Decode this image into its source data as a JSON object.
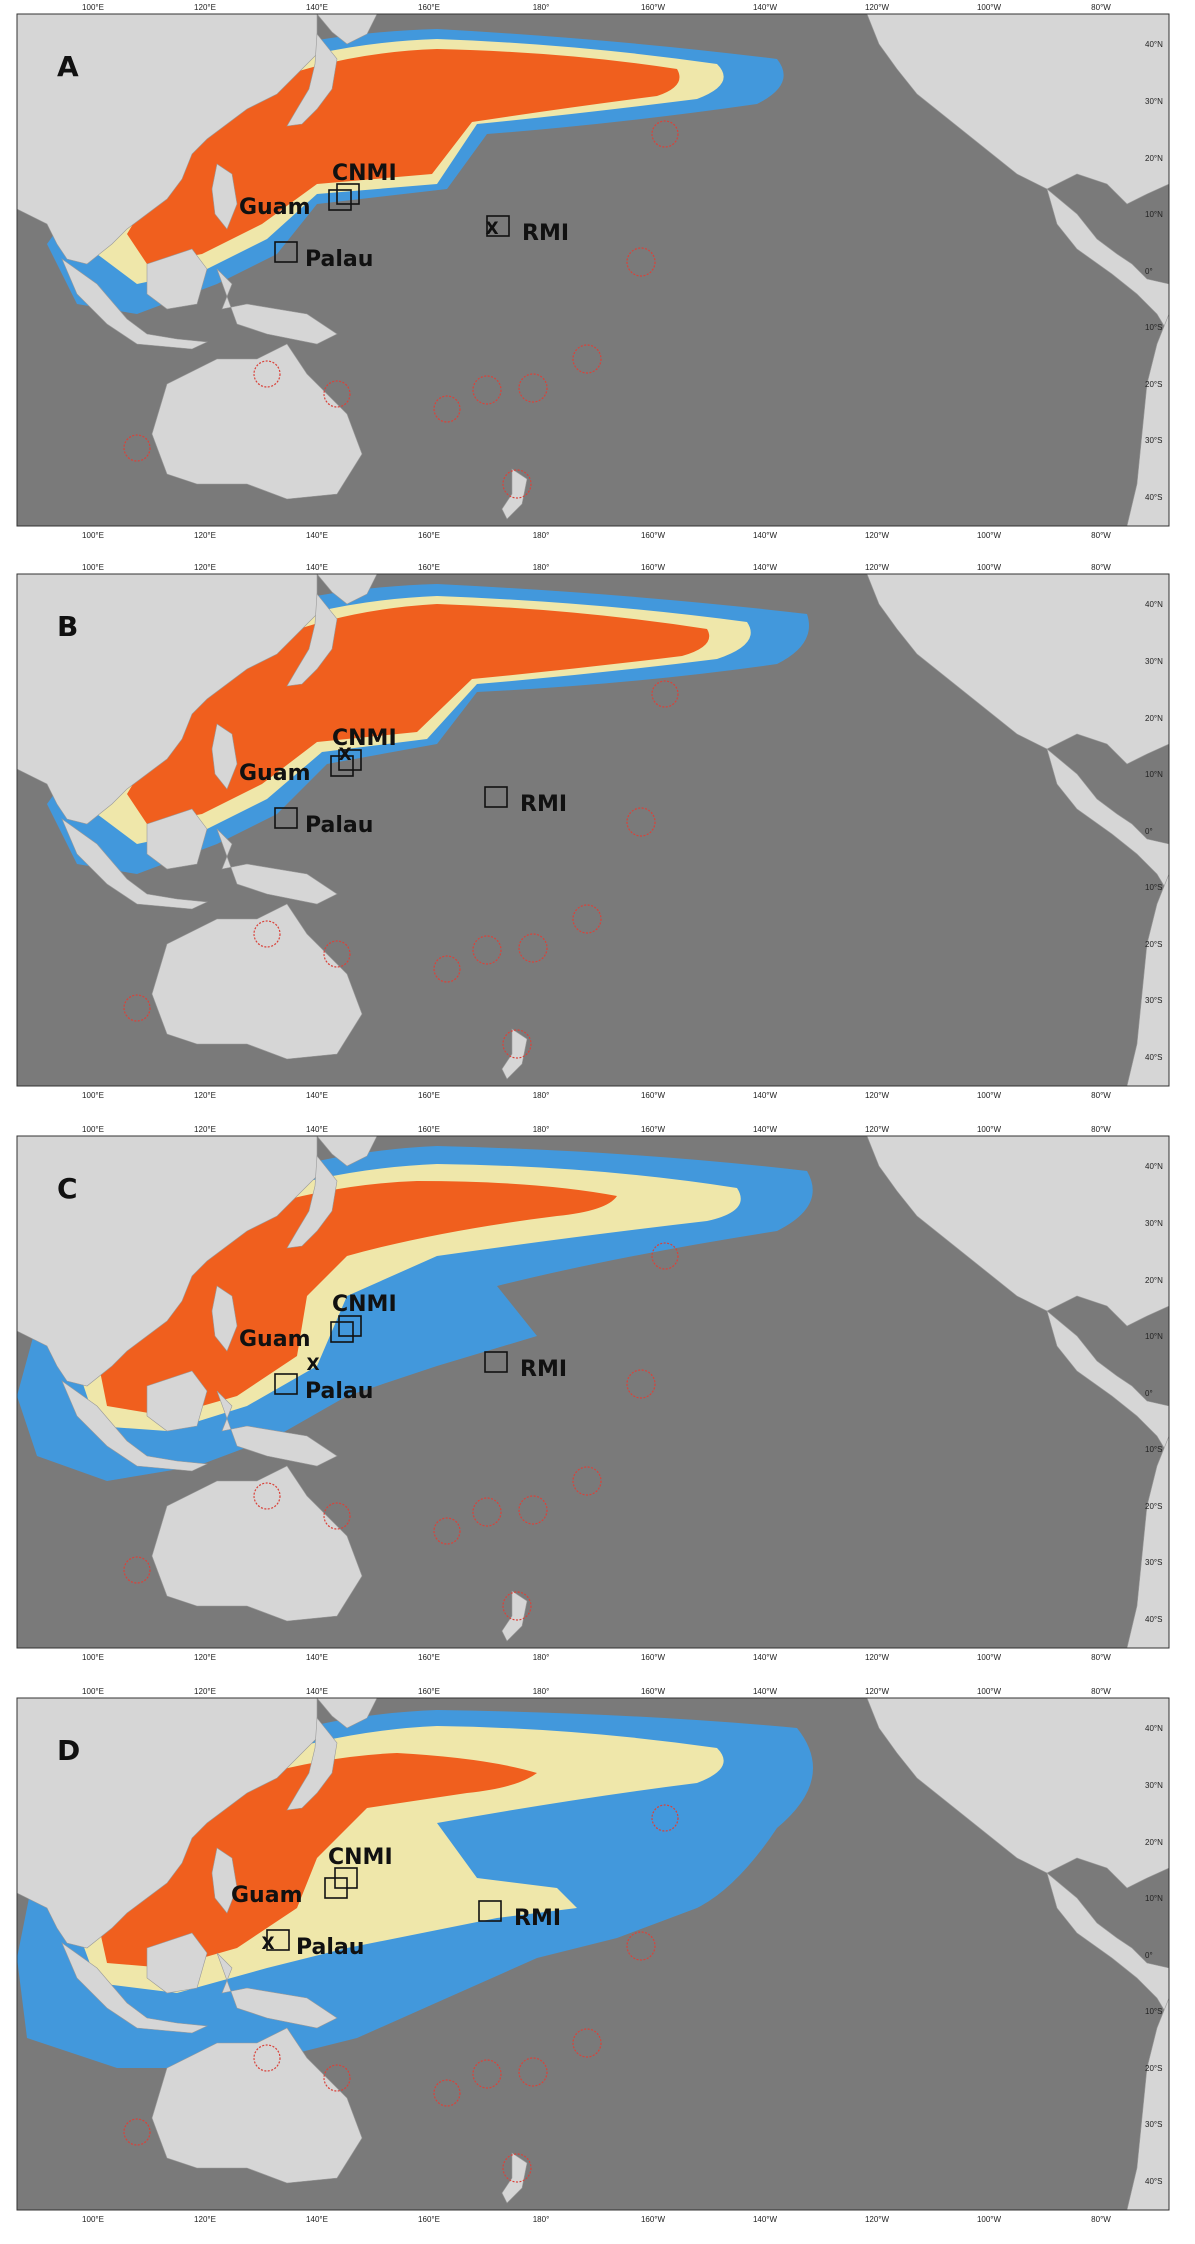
{
  "colors": {
    "ocean": "#7a7a7a",
    "land": "#d6d6d6",
    "density_high": "#ef5a1a",
    "density_mid": "#f5e9a8",
    "density_low": "#3f9ae2",
    "eez_circle": "#d9423a",
    "frame": "#333333"
  },
  "axes": {
    "x_ticks": [
      "100°E",
      "120°E",
      "140°E",
      "160°E",
      "180°",
      "160°W",
      "140°W",
      "120°W",
      "100°W",
      "80°W"
    ],
    "y_ticks": [
      "40°N",
      "30°N",
      "20°N",
      "10°N",
      "0°",
      "10°S",
      "20°S",
      "30°S",
      "40°S"
    ]
  },
  "site_labels": {
    "cnmi": "CNMI",
    "guam": "Guam",
    "palau": "Palau",
    "rmi": "RMI"
  },
  "release_marker": "X",
  "panels": [
    {
      "letter": "A",
      "release_site": "RMI"
    },
    {
      "letter": "B",
      "release_site": "CNMI"
    },
    {
      "letter": "C",
      "release_site": "Guam"
    },
    {
      "letter": "D",
      "release_site": "Palau"
    }
  ]
}
